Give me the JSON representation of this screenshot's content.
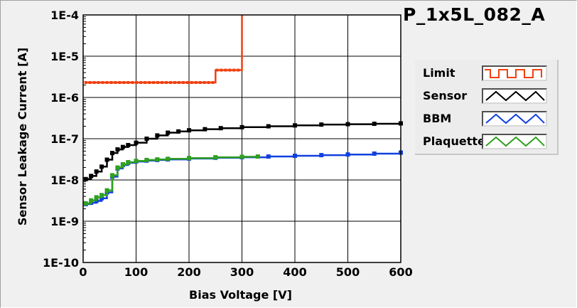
{
  "chart_data": {
    "type": "line",
    "title": "P_1x5L_082_A",
    "xlabel": "Bias Voltage [V]",
    "ylabel": "Sensor Leakage Current [A]",
    "xlim": [
      0,
      600
    ],
    "ylim": [
      1e-10,
      0.0001
    ],
    "yscale": "log",
    "x_ticks": [
      0,
      100,
      200,
      300,
      400,
      500,
      600
    ],
    "y_ticks": [
      1e-10,
      1e-09,
      1e-08,
      1e-07,
      1e-06,
      1e-05,
      0.0001
    ],
    "y_tick_labels": [
      "1E-10",
      "1E-9",
      "1E-8",
      "1E-7",
      "1E-6",
      "1E-5",
      "1E-4"
    ],
    "grid": true,
    "legend_position": "right",
    "series": [
      {
        "name": "Limit",
        "color": "#f04010",
        "style": "step",
        "x": [
          5,
          250,
          250,
          300,
          300,
          300
        ],
        "y": [
          2.3e-06,
          2.3e-06,
          4.6e-06,
          4.6e-06,
          4.6e-06,
          0.0001
        ]
      },
      {
        "name": "Sensor",
        "color": "#000000",
        "style": "markers-line",
        "x": [
          5,
          15,
          25,
          35,
          45,
          55,
          65,
          75,
          85,
          100,
          120,
          140,
          160,
          180,
          200,
          230,
          260,
          300,
          350,
          400,
          450,
          500,
          550,
          600
        ],
        "y": [
          1.05e-08,
          1.25e-08,
          1.6e-08,
          2.1e-08,
          3.1e-08,
          4.5e-08,
          5.5e-08,
          6.3e-08,
          7e-08,
          8e-08,
          1e-07,
          1.2e-07,
          1.4e-07,
          1.5e-07,
          1.6e-07,
          1.7e-07,
          1.8e-07,
          1.9e-07,
          2e-07,
          2.1e-07,
          2.2e-07,
          2.25e-07,
          2.3e-07,
          2.35e-07
        ]
      },
      {
        "name": "BBM",
        "color": "#1040e0",
        "style": "markers-line",
        "x": [
          5,
          15,
          25,
          35,
          45,
          55,
          65,
          75,
          85,
          100,
          120,
          140,
          160,
          200,
          250,
          300,
          350,
          400,
          450,
          500,
          550,
          600
        ],
        "y": [
          2.6e-09,
          2.8e-09,
          3.1e-09,
          3.6e-09,
          5e-09,
          1.2e-08,
          1.9e-08,
          2.3e-08,
          2.6e-08,
          2.8e-08,
          2.95e-08,
          3.05e-08,
          3.15e-08,
          3.3e-08,
          3.45e-08,
          3.55e-08,
          3.7e-08,
          3.85e-08,
          4e-08,
          4.15e-08,
          4.35e-08,
          4.6e-08
        ]
      },
      {
        "name": "Plaquette",
        "color": "#30a020",
        "style": "markers-line",
        "x": [
          5,
          15,
          25,
          35,
          45,
          55,
          65,
          75,
          85,
          100,
          120,
          140,
          160,
          200,
          250,
          300,
          330
        ],
        "y": [
          2.7e-09,
          3.2e-09,
          3.8e-09,
          4.3e-09,
          5.6e-09,
          1.3e-08,
          2e-08,
          2.4e-08,
          2.7e-08,
          2.9e-08,
          3.05e-08,
          3.15e-08,
          3.25e-08,
          3.4e-08,
          3.55e-08,
          3.65e-08,
          3.7e-08
        ]
      }
    ]
  }
}
